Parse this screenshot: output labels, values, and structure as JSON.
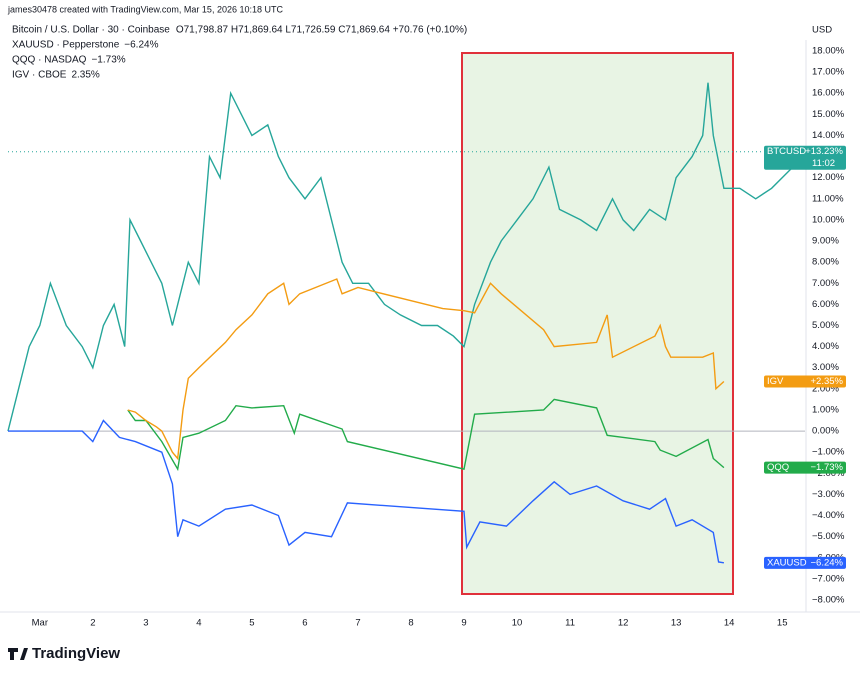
{
  "header": {
    "watermark": "james30478 created with TradingView.com, Mar 15, 2026 10:18 UTC",
    "logo": "TradingView",
    "currency": "USD"
  },
  "legend": [
    {
      "label": "Bitcoin / U.S. Dollar · 30 · Coinbase",
      "ohlc": "O71,798.87 H71,869.64 L71,726.59 C71,869.64 +70.76 (+0.10%)"
    },
    {
      "label": "XAUUSD · Pepperstone",
      "change": "−6.24%"
    },
    {
      "label": "QQQ · NASDAQ",
      "change": "−1.73%"
    },
    {
      "label": "IGV · CBOE",
      "change": "2.35%"
    }
  ],
  "chart_data": {
    "type": "line",
    "xlim": [
      0.4,
      15.43
    ],
    "ylim": [
      -8,
      18
    ],
    "xticks": [
      {
        "value": 1,
        "label": "Mar"
      },
      2,
      3,
      4,
      5,
      6,
      7,
      8,
      9,
      10,
      11,
      12,
      13,
      14,
      15
    ],
    "yticks": [
      {
        "value": 18,
        "label": "18.00%"
      },
      {
        "value": 17,
        "label": "17.00%"
      },
      {
        "value": 16,
        "label": "16.00%"
      },
      {
        "value": 15,
        "label": "15.00%"
      },
      {
        "value": 14,
        "label": "14.00%"
      },
      {
        "value": 13,
        "label": "13.00%"
      },
      {
        "value": 12,
        "label": "12.00%"
      },
      {
        "value": 11,
        "label": "11.00%"
      },
      {
        "value": 10,
        "label": "10.00%"
      },
      {
        "value": 9,
        "label": "9.00%"
      },
      {
        "value": 8,
        "label": "8.00%"
      },
      {
        "value": 7,
        "label": "7.00%"
      },
      {
        "value": 6,
        "label": "6.00%"
      },
      {
        "value": 5,
        "label": "5.00%"
      },
      {
        "value": 4,
        "label": "4.00%"
      },
      {
        "value": 3,
        "label": "3.00%"
      },
      {
        "value": 2,
        "label": "2.00%"
      },
      {
        "value": 1,
        "label": "1.00%"
      },
      {
        "value": 0,
        "label": "0.00%"
      },
      {
        "value": -1,
        "label": "−1.00%"
      },
      {
        "value": -2,
        "label": "−2.00%"
      },
      {
        "value": -3,
        "label": "−3.00%"
      },
      {
        "value": -4,
        "label": "−4.00%"
      },
      {
        "value": -5,
        "label": "−5.00%"
      },
      {
        "value": -6,
        "label": "−6.00%"
      },
      {
        "value": -7,
        "label": "−7.00%"
      },
      {
        "value": -8,
        "label": "−8.00%"
      }
    ],
    "series": [
      {
        "name": "BTCUSD",
        "color": "#26a69a",
        "last_label": "+13.23%",
        "time_label": "11:02",
        "x": [
          0.4,
          0.6,
          0.8,
          1.0,
          1.2,
          1.5,
          1.8,
          2.0,
          2.2,
          2.4,
          2.6,
          2.7,
          2.9,
          3.1,
          3.3,
          3.5,
          3.6,
          3.8,
          4.0,
          4.2,
          4.4,
          4.6,
          4.8,
          5.0,
          5.3,
          5.5,
          5.7,
          6.0,
          6.3,
          6.5,
          6.7,
          6.9,
          7.2,
          7.5,
          7.8,
          8.2,
          8.5,
          8.8,
          9.0,
          9.2,
          9.5,
          9.7,
          10.0,
          10.3,
          10.6,
          10.8,
          11.2,
          11.5,
          11.8,
          12.0,
          12.2,
          12.5,
          12.8,
          13.0,
          13.3,
          13.5,
          13.6,
          13.7,
          13.9,
          14.2,
          14.5,
          14.8,
          15.2,
          15.35
        ],
        "values": [
          0,
          2,
          4,
          5,
          7,
          5,
          4,
          3,
          5,
          6,
          4,
          10,
          9,
          8,
          7,
          5,
          6,
          8,
          7,
          13,
          12,
          16,
          15,
          14,
          14.5,
          13,
          12,
          11,
          12,
          10,
          8,
          7,
          7,
          6,
          5.5,
          5,
          5,
          4.5,
          4,
          6,
          8,
          9,
          10,
          11,
          12.5,
          10.5,
          10,
          9.5,
          11,
          10,
          9.5,
          10.5,
          10,
          12,
          13,
          14,
          16.5,
          14,
          11.5,
          11.5,
          11,
          11.5,
          12.5,
          13.23
        ]
      },
      {
        "name": "XAUUSD",
        "color": "#2962ff",
        "last_label": "−6.24%",
        "x": [
          0.4,
          1.8,
          2.0,
          2.2,
          2.5,
          2.8,
          3.3,
          3.5,
          3.6,
          3.7,
          4.0,
          4.5,
          5.0,
          5.5,
          5.7,
          6.0,
          6.5,
          6.8,
          9.0,
          9.05,
          9.3,
          9.8,
          10.3,
          10.7,
          11.0,
          11.5,
          12.0,
          12.5,
          12.8,
          13.0,
          13.3,
          13.7,
          13.8,
          13.9
        ],
        "values": [
          0,
          0,
          -0.5,
          0.5,
          -0.3,
          -0.5,
          -1,
          -2.5,
          -5,
          -4.2,
          -4.5,
          -3.7,
          -3.5,
          -4,
          -5.4,
          -4.8,
          -5,
          -3.4,
          -3.8,
          -5.5,
          -4.3,
          -4.5,
          -3.3,
          -2.4,
          -3,
          -2.6,
          -3.3,
          -3.7,
          -3.2,
          -4.5,
          -4.2,
          -4.8,
          -6.2,
          -6.24
        ]
      },
      {
        "name": "QQQ",
        "color": "#22ab4a",
        "last_label": "−1.73%",
        "x": [
          2.66,
          2.8,
          3.0,
          3.3,
          3.6,
          3.7,
          4.0,
          4.5,
          4.7,
          5.0,
          5.6,
          5.8,
          5.9,
          6.7,
          6.8,
          9.0,
          9.2,
          10.5,
          10.7,
          11.5,
          11.7,
          12.6,
          12.7,
          13.0,
          13.6,
          13.7,
          13.9
        ],
        "values": [
          1,
          0.5,
          0.5,
          -0.5,
          -1.8,
          -0.3,
          -0.1,
          0.5,
          1.2,
          1.1,
          1.2,
          -0.1,
          0.8,
          0.1,
          -0.5,
          -1.8,
          0.8,
          1,
          1.5,
          1.1,
          -0.2,
          -0.5,
          -0.9,
          -1.2,
          -0.4,
          -1.3,
          -1.73
        ]
      },
      {
        "name": "IGV",
        "color": "#f39c12",
        "last_label": "+2.35%",
        "x": [
          2.66,
          2.8,
          3.0,
          3.2,
          3.3,
          3.5,
          3.6,
          3.7,
          3.8,
          4.0,
          4.5,
          4.7,
          5.0,
          5.3,
          5.6,
          5.7,
          5.9,
          6.6,
          6.7,
          7.0,
          8.6,
          9.0,
          9.2,
          9.5,
          9.7,
          10.5,
          10.7,
          11.5,
          11.7,
          11.8,
          12.6,
          12.7,
          12.8,
          12.9,
          13.5,
          13.7,
          13.75,
          13.9
        ],
        "values": [
          1,
          0.9,
          0.5,
          0.2,
          0,
          -1,
          -1.3,
          1,
          2.5,
          3,
          4.2,
          4.8,
          5.5,
          6.5,
          7,
          6,
          6.5,
          7.2,
          6.5,
          6.8,
          5.8,
          5.7,
          5.6,
          7,
          6.5,
          4.8,
          4,
          4.2,
          5.5,
          3.5,
          4.5,
          5,
          4,
          3.5,
          3.5,
          3.7,
          2,
          2.35
        ]
      }
    ]
  }
}
